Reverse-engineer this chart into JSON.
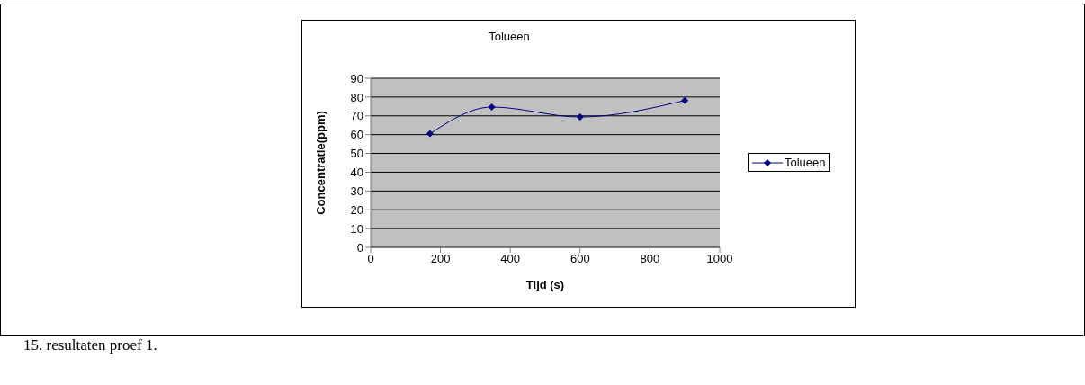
{
  "chart_data": {
    "type": "line",
    "title": "Tolueen",
    "xlabel": "Tijd (s)",
    "ylabel": "Concentratie(ppm)",
    "x": [
      170,
      347,
      600,
      900
    ],
    "series": [
      {
        "name": "Tolueen",
        "color": "#000080",
        "values": [
          60.5,
          74.7,
          69.4,
          78.2
        ]
      }
    ],
    "xlim": [
      0,
      1000
    ],
    "xticks": [
      0,
      200,
      400,
      600,
      800,
      1000
    ],
    "ylim": [
      0,
      90
    ],
    "yticks": [
      0,
      10,
      20,
      30,
      40,
      50,
      60,
      70,
      80,
      90
    ],
    "grid": "y",
    "legend": "right",
    "marker": "diamond",
    "line_style": "solid",
    "annotations": [
      "15.  resultaten proef 1."
    ]
  }
}
